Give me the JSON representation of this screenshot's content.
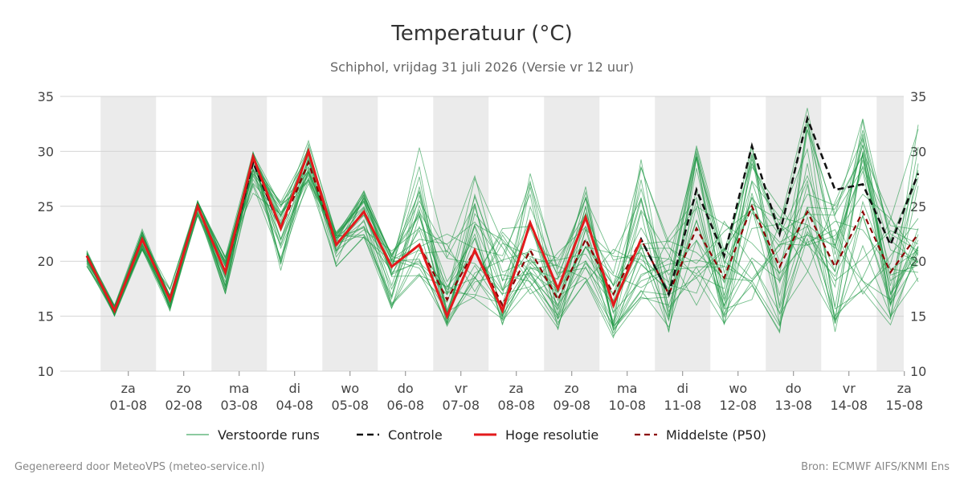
{
  "title": "Temperatuur (°C)",
  "subtitle": "Schiphol, vrijdag 31 juli 2026 (Versie vr 12 uur)",
  "footer_left": "Gegenereerd door MeteoVPS (meteo-service.nl)",
  "footer_right": "Bron: ECMWF AIFS/KNMI Ens",
  "colors": {
    "ensemble": "#1a9641",
    "controle": "#111111",
    "hoge_resolutie": "#e31a1c",
    "mediaan": "#8b0000",
    "band": "#ebebeb",
    "grid": "#d4d4d4"
  },
  "chart_data": {
    "type": "line",
    "title": "Temperatuur (°C)",
    "ylim": [
      10,
      35
    ],
    "yticks": [
      10,
      15,
      20,
      25,
      30,
      35
    ],
    "grid": true,
    "legend_position": "bottom",
    "x_start": "01-08",
    "x_step": "12 uur",
    "x_ticks": [
      {
        "day": "za",
        "date": "01-08"
      },
      {
        "day": "zo",
        "date": "02-08"
      },
      {
        "day": "ma",
        "date": "03-08"
      },
      {
        "day": "di",
        "date": "04-08"
      },
      {
        "day": "wo",
        "date": "05-08"
      },
      {
        "day": "do",
        "date": "06-08"
      },
      {
        "day": "vr",
        "date": "07-08"
      },
      {
        "day": "za",
        "date": "08-08"
      },
      {
        "day": "zo",
        "date": "09-08"
      },
      {
        "day": "ma",
        "date": "10-08"
      },
      {
        "day": "di",
        "date": "11-08"
      },
      {
        "day": "wo",
        "date": "12-08"
      },
      {
        "day": "do",
        "date": "13-08"
      },
      {
        "day": "vr",
        "date": "14-08"
      },
      {
        "day": "za",
        "date": "15-08"
      }
    ],
    "x_dates": [
      "31-07",
      "31-07",
      "01-08",
      "01-08",
      "02-08",
      "02-08",
      "03-08",
      "03-08",
      "04-08",
      "04-08",
      "05-08",
      "05-08",
      "06-08",
      "06-08",
      "07-08",
      "07-08",
      "08-08",
      "08-08",
      "09-08",
      "09-08",
      "10-08",
      "10-08",
      "11-08",
      "11-08",
      "12-08",
      "12-08",
      "13-08",
      "13-08",
      "14-08",
      "14-08",
      "15-08"
    ],
    "legend": [
      {
        "key": "ensemble",
        "label": "Verstoorde runs"
      },
      {
        "key": "controle",
        "label": "Controle"
      },
      {
        "key": "hoge_resolutie",
        "label": "Hoge resolutie"
      },
      {
        "key": "mediaan",
        "label": "Middelste (P50)"
      }
    ],
    "series": [
      {
        "name": "Controle",
        "values": [
          20.5,
          15.5,
          22,
          16.5,
          25,
          19,
          29,
          23,
          30,
          21.5,
          24.5,
          19.5,
          21.5,
          15,
          21,
          15.5,
          23.5,
          17.5,
          24,
          16,
          22,
          17,
          26.5,
          20.5,
          30.5,
          22.5,
          33,
          26.5,
          27,
          21.5,
          28
        ]
      },
      {
        "name": "Hoge resolutie",
        "values": [
          20.5,
          15.5,
          22,
          16.5,
          25,
          19,
          29.5,
          23,
          30,
          21.5,
          24.5,
          19.5,
          21.5,
          15,
          21,
          15.5,
          23.5,
          17.5,
          24,
          16,
          22
        ]
      },
      {
        "name": "Middelste (P50)",
        "values": [
          20.5,
          15.5,
          22,
          16.5,
          25,
          19,
          29,
          23,
          29,
          21.5,
          24.5,
          19.5,
          21.5,
          16.5,
          21,
          16,
          21,
          16.5,
          22,
          17,
          22,
          17,
          23,
          18.5,
          25,
          19.5,
          24.5,
          19.5,
          24.5,
          19,
          22.5
        ]
      },
      {
        "name": "Verstoorde runs",
        "members": 30,
        "values_min": [
          19.5,
          15,
          21,
          15.5,
          24,
          17,
          26,
          19,
          25.5,
          19.5,
          22,
          15.5,
          18.5,
          14,
          16.5,
          14,
          17,
          13.5,
          18,
          13,
          16.5,
          13.5,
          16,
          14,
          16,
          12.5,
          19,
          13.5,
          17,
          14,
          18
        ],
        "values_max": [
          21,
          16,
          23,
          17.5,
          25.5,
          20.5,
          30,
          25.5,
          31,
          23,
          26.5,
          21,
          30.5,
          23,
          28,
          23.5,
          29,
          22,
          27,
          21.5,
          29.5,
          22.5,
          31,
          24.5,
          31,
          26,
          34,
          25.5,
          33,
          24.5,
          32.5
        ]
      }
    ]
  }
}
